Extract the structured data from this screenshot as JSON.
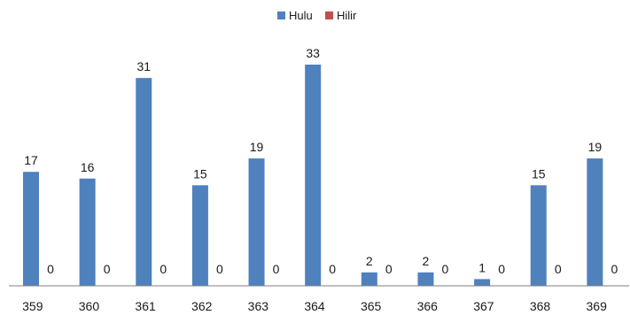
{
  "chart_data": {
    "type": "bar",
    "categories": [
      "359",
      "360",
      "361",
      "362",
      "363",
      "364",
      "365",
      "366",
      "367",
      "368",
      "369"
    ],
    "series": [
      {
        "name": "Hulu",
        "color": "#4f81bd",
        "values": [
          17,
          16,
          31,
          15,
          19,
          33,
          2,
          2,
          1,
          15,
          19
        ]
      },
      {
        "name": "Hilir",
        "color": "#c0504d",
        "values": [
          0,
          0,
          0,
          0,
          0,
          0,
          0,
          0,
          0,
          0,
          0
        ]
      }
    ],
    "ylim": [
      0,
      35
    ],
    "grid": false,
    "legend_position": "top-center",
    "data_labels": true,
    "axis_color": "#7f7f7f"
  }
}
